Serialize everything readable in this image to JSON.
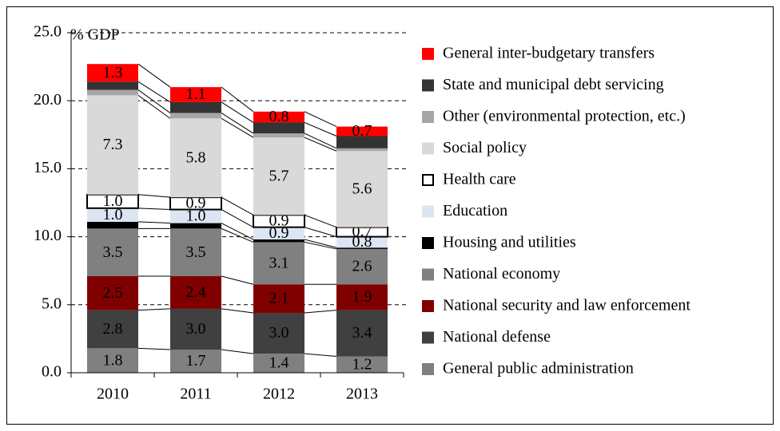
{
  "chart_data": {
    "type": "stacked_bar",
    "ylabel": "% GDP",
    "categories": [
      "2010",
      "2011",
      "2012",
      "2013"
    ],
    "ylim": [
      0,
      25
    ],
    "yticks": [
      {
        "value": 0,
        "label": "0.0"
      },
      {
        "value": 5,
        "label": "5.0"
      },
      {
        "value": 10,
        "label": "10.0"
      },
      {
        "value": 15,
        "label": "15.0"
      },
      {
        "value": 20,
        "label": "20.0"
      },
      {
        "value": 25,
        "label": "25.0"
      }
    ],
    "grid": true,
    "legend": "right",
    "series": [
      {
        "name": "General public administration",
        "color": "#808080",
        "values": [
          1.8,
          1.7,
          1.4,
          1.2
        ],
        "value_labels": [
          "1.8",
          "1.7",
          "1.4",
          "1.2"
        ]
      },
      {
        "name": "National defense",
        "color": "#404040",
        "values": [
          2.8,
          3.0,
          3.0,
          3.4
        ],
        "value_labels": [
          "2.8",
          "3.0",
          "3.0",
          "3.4"
        ]
      },
      {
        "name": "National security and law enforcement",
        "color": "#800000",
        "values": [
          2.5,
          2.4,
          2.1,
          1.9
        ],
        "value_labels": [
          "2.5",
          "2.4",
          "2.1",
          "1.9"
        ]
      },
      {
        "name": "National economy",
        "color": "#808080",
        "values": [
          3.5,
          3.5,
          3.1,
          2.6
        ],
        "value_labels": [
          "3.5",
          "3.5",
          "3.1",
          "2.6"
        ]
      },
      {
        "name": "Housing and utilities",
        "color": "#000000",
        "values": [
          0.5,
          0.4,
          0.2,
          0.1
        ]
      },
      {
        "name": "Education",
        "color": "#dce6f2",
        "values": [
          1.0,
          1.0,
          0.9,
          0.8
        ],
        "value_labels": [
          "1.0",
          "1.0",
          "0.9",
          "0.8"
        ]
      },
      {
        "name": "Health care",
        "color": "#ffffff",
        "edgecolor": "#000000",
        "values": [
          1.0,
          0.9,
          0.9,
          0.7
        ],
        "value_labels": [
          "1.0",
          "0.9",
          "0.9",
          "0.7"
        ]
      },
      {
        "name": "Social policy",
        "color": "#d9d9d9",
        "values": [
          7.3,
          5.8,
          5.7,
          5.6
        ],
        "value_labels": [
          "7.3",
          "5.8",
          "5.7",
          "5.6"
        ]
      },
      {
        "name": "Other (environmental protection, etc.)",
        "color": "#a6a6a6",
        "values": [
          0.4,
          0.4,
          0.3,
          0.2
        ]
      },
      {
        "name": "State and municipal debt servicing",
        "color": "#333333",
        "values": [
          0.6,
          0.8,
          0.8,
          0.9
        ]
      },
      {
        "name": "General inter-budgetary transfers",
        "color": "#ff0000",
        "values": [
          1.3,
          1.1,
          0.8,
          0.7
        ],
        "value_labels": [
          "1.3",
          "1.1",
          "0.8",
          "0.7"
        ]
      }
    ]
  }
}
